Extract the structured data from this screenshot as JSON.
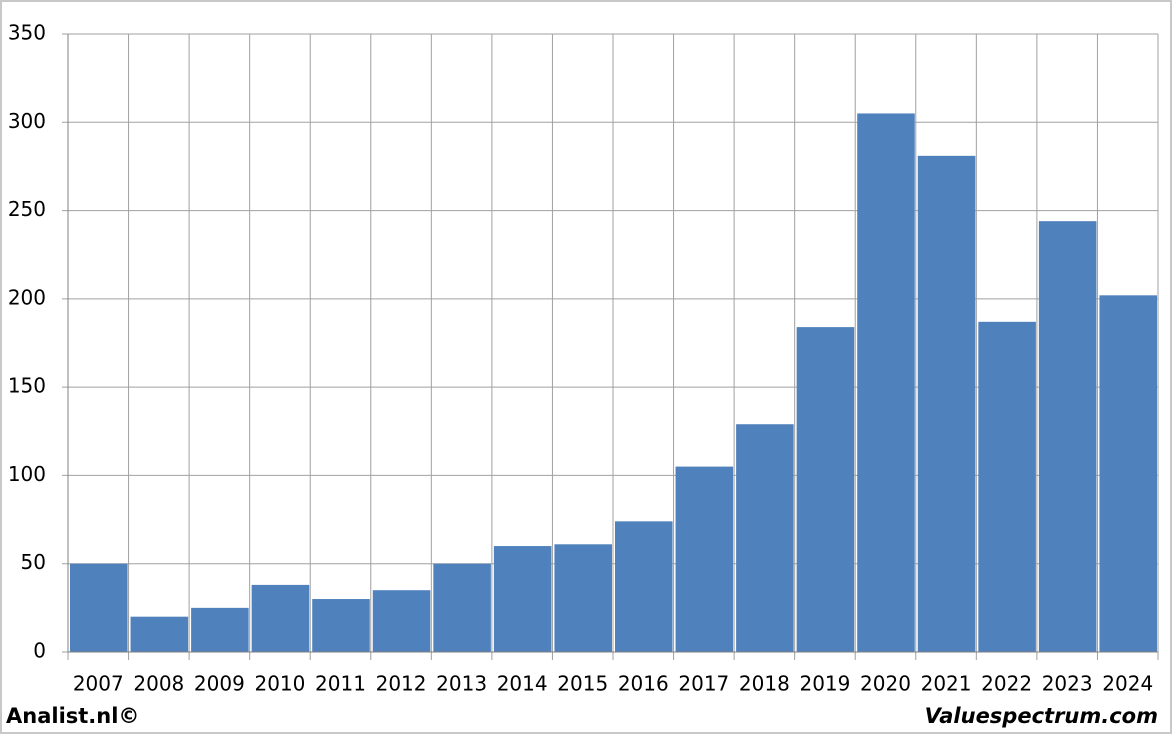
{
  "chart_data": {
    "type": "bar",
    "categories": [
      "2007",
      "2008",
      "2009",
      "2010",
      "2011",
      "2012",
      "2013",
      "2014",
      "2015",
      "2016",
      "2017",
      "2018",
      "2019",
      "2020",
      "2021",
      "2022",
      "2023",
      "2024"
    ],
    "values": [
      50,
      20,
      25,
      38,
      30,
      35,
      50,
      60,
      61,
      74,
      105,
      129,
      184,
      305,
      281,
      187,
      244,
      202
    ],
    "color": "#4f81bd",
    "ylim": [
      0,
      350
    ],
    "yticks": [
      0,
      50,
      100,
      150,
      200,
      250,
      300,
      350
    ],
    "grid": true
  },
  "footer": {
    "left": "Analist.nl©",
    "right": "Valuespectrum.com"
  }
}
